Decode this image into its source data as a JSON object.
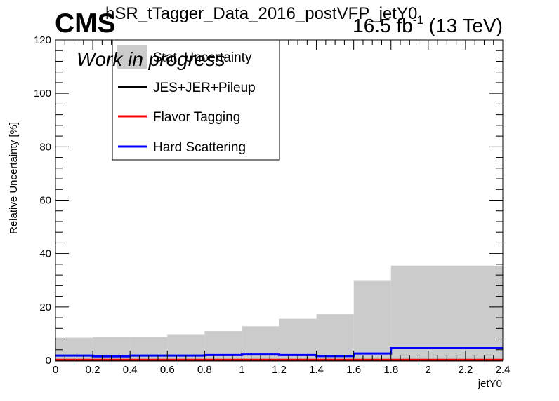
{
  "header": {
    "cms_label": "CMS",
    "title": "hSR_tTagger_Data_2016_postVFP_jetY0",
    "lumi_prefix": "16.5 fb",
    "lumi_exp": "-1",
    "lumi_suffix": " (13 TeV)",
    "work_label": "Work in progress"
  },
  "colors": {
    "stat": "#cbcbcb",
    "jes": "#000000",
    "flavor": "#ff0000",
    "hard": "#0000ff"
  },
  "chart_data": {
    "type": "step",
    "xlabel": "jetY0",
    "ylabel": "Relative Uncertainty [%]",
    "xlim": [
      0,
      2.4
    ],
    "ylim": [
      0,
      120
    ],
    "xticks": [
      "0",
      "0.2",
      "0.4",
      "0.6",
      "0.8",
      "1",
      "1.2",
      "1.4",
      "1.6",
      "1.8",
      "2",
      "2.2",
      "2.4"
    ],
    "yticks": [
      "0",
      "20",
      "40",
      "60",
      "80",
      "100",
      "120"
    ],
    "bin_edges": [
      0,
      0.2,
      0.4,
      0.6,
      0.8,
      1.0,
      1.2,
      1.4,
      1.6,
      1.8,
      2.4
    ],
    "series": [
      {
        "name": "Stat. Uncertainty",
        "style": "fill",
        "values": [
          8.5,
          8.8,
          8.8,
          9.6,
          11.0,
          12.8,
          15.6,
          17.3,
          29.8,
          35.5
        ]
      },
      {
        "name": "JES+JER+Pileup",
        "style": "line",
        "values": [
          0,
          0,
          0,
          0,
          0,
          0,
          0,
          0,
          0,
          0
        ]
      },
      {
        "name": "Flavor Tagging",
        "style": "line",
        "values": [
          0.2,
          0.2,
          0.2,
          0.2,
          0.2,
          0.2,
          0.2,
          0.2,
          0.2,
          0.2
        ]
      },
      {
        "name": "Hard Scattering",
        "style": "line",
        "values": [
          1.8,
          1.5,
          1.8,
          1.8,
          2.0,
          2.2,
          2.0,
          1.6,
          2.6,
          4.6
        ]
      }
    ],
    "legend": [
      "Stat. Uncertainty",
      "JES+JER+Pileup",
      "Flavor Tagging",
      "Hard Scattering"
    ],
    "legend_position": "top-left"
  }
}
